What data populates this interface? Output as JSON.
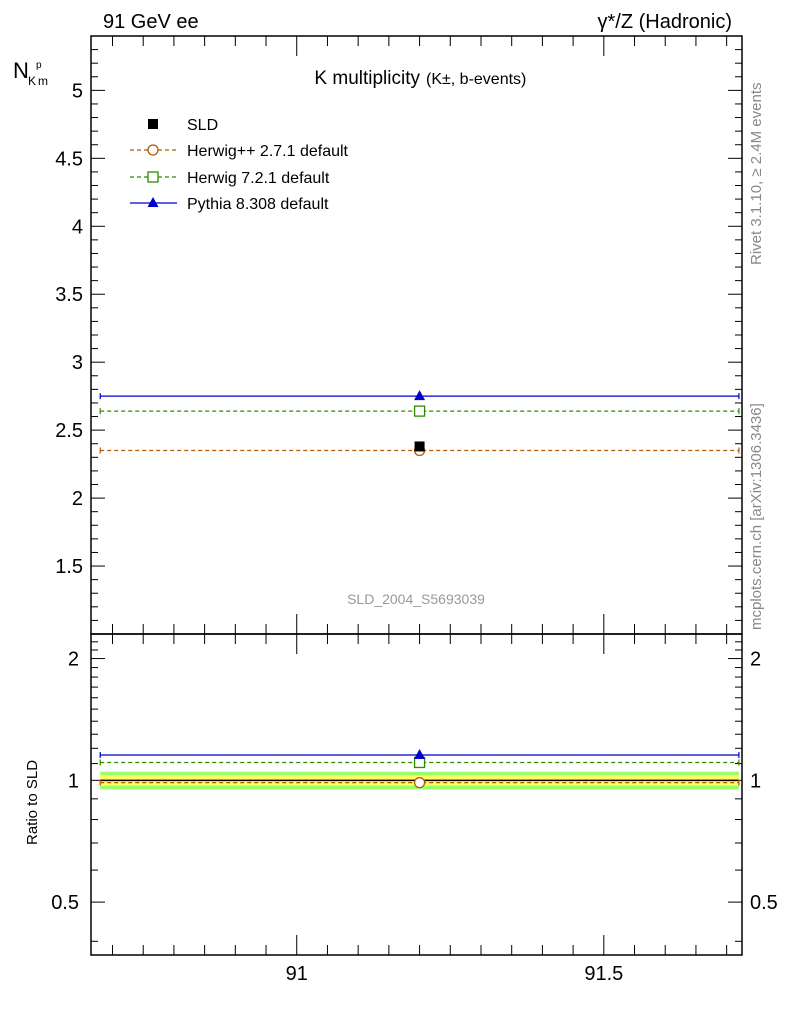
{
  "header": {
    "left": "91 GeV ee",
    "right": "γ*/Z (Hadronic)"
  },
  "side_labels": {
    "rivet": "Rivet 3.1.10, ≥ 2.4M events",
    "mcplots": "mcplots.cern.ch [arXiv:1306.3436]"
  },
  "colors": {
    "sld": "#000000",
    "herwigpp": "#b35900",
    "herwig7": "#2e8b00",
    "pythia": "#0000cc",
    "band_inner": "#ffff66",
    "band_outer": "#99ff66"
  },
  "chart_data": [
    {
      "type": "scatter",
      "title": "K multiplicity",
      "title_suffix": "(K±, b-events)",
      "ylabel": "N",
      "ylabel_sub": "K",
      "ylabel_sup": "p",
      "ylabel_tail": "m",
      "watermark": "SLD_2004_S5693039",
      "xlim": [
        90.665,
        91.725
      ],
      "ylim": [
        1.0,
        5.4
      ],
      "yticks": [
        1.5,
        2,
        2.5,
        3,
        3.5,
        4,
        4.5,
        5
      ],
      "yticklabels": [
        "1.5",
        "2",
        "2.5",
        "3",
        "3.5",
        "4",
        "4.5",
        "5"
      ],
      "x_bin": [
        90.68,
        91.72
      ],
      "x_center": 91.2,
      "series": [
        {
          "name": "SLD",
          "style": "data",
          "value": 2.38
        },
        {
          "name": "Herwig++ 2.7.1 default",
          "style": "dashed-circle",
          "value": 2.35
        },
        {
          "name": "Herwig 7.2.1 default",
          "style": "dashed-square",
          "value": 2.64
        },
        {
          "name": "Pythia 8.308 default",
          "style": "solid-triangle",
          "value": 2.75
        }
      ]
    },
    {
      "type": "scatter",
      "title": "ratio",
      "ylabel": "Ratio to SLD",
      "ylim": [
        0.37,
        2.3
      ],
      "yticks": [
        0.5,
        1,
        2
      ],
      "yticklabels": [
        "0.5",
        "1",
        "2"
      ],
      "xticks": [
        91,
        91.5
      ],
      "xticklabels": [
        "91",
        "91.5"
      ],
      "band_inner": [
        0.97,
        1.03
      ],
      "band_outer": [
        0.95,
        1.05
      ],
      "series": [
        {
          "name": "Herwig++ 2.7.1 default",
          "value": 0.987
        },
        {
          "name": "Herwig 7.2.1 default",
          "value": 1.107
        },
        {
          "name": "Pythia 8.308 default",
          "value": 1.155
        }
      ]
    }
  ]
}
